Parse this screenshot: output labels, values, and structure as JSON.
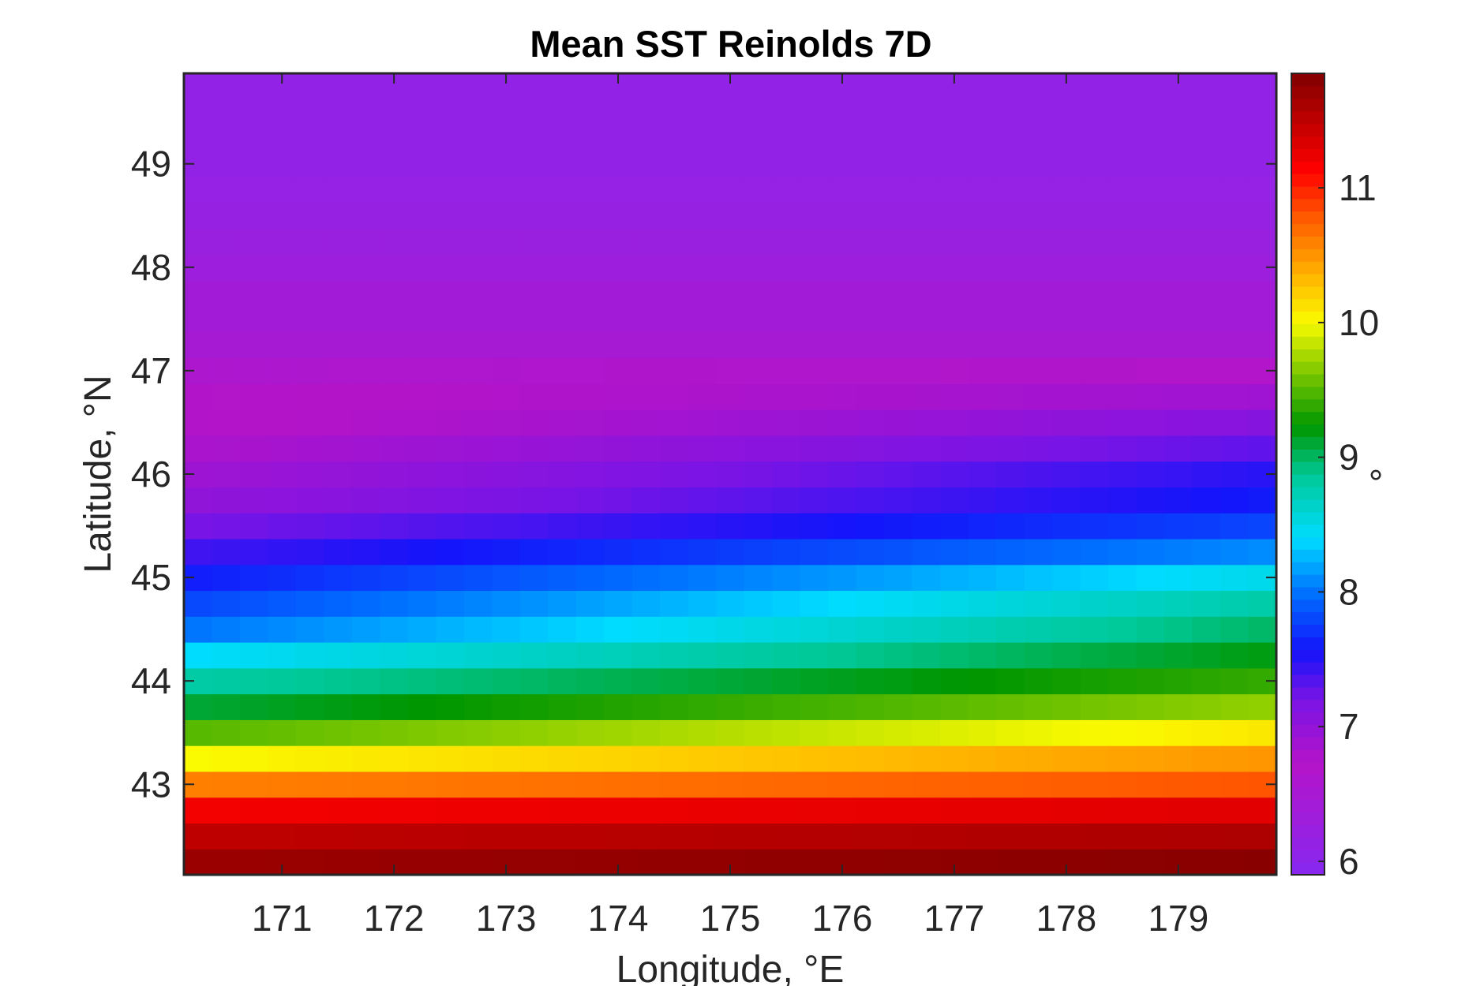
{
  "chart_data": {
    "type": "heatmap",
    "title": "Mean SST Reinolds 7D",
    "xlabel": "Longitude, °E",
    "ylabel": "Latitude, °N",
    "colorbar_label": "°",
    "colormap": "jet-like (violet → blue → cyan → green → yellow → red → dark red)",
    "xlim": [
      170.125,
      179.875
    ],
    "ylim": [
      42.125,
      49.875
    ],
    "clim": [
      5.9,
      11.85
    ],
    "xticks": [
      171,
      172,
      173,
      174,
      175,
      176,
      177,
      178,
      179
    ],
    "yticks": [
      43,
      44,
      45,
      46,
      47,
      48,
      49
    ],
    "colorbar_ticks": [
      6,
      7,
      8,
      9,
      10,
      11
    ],
    "grid": false,
    "cell_size_deg": 0.25,
    "lat_profile": {
      "lat": [
        42.25,
        42.5,
        42.75,
        43.0,
        43.25,
        43.5,
        43.75,
        44.0,
        44.25,
        44.5,
        44.75,
        45.0,
        45.25,
        45.5,
        45.75,
        46.0,
        46.25,
        46.5,
        46.75,
        47.0,
        47.25,
        47.5,
        47.75,
        48.0,
        48.5,
        49.0,
        49.5,
        49.75
      ],
      "value_west": [
        11.7,
        11.5,
        11.2,
        10.6,
        10.0,
        9.5,
        9.1,
        8.8,
        8.4,
        8.0,
        7.8,
        7.6,
        7.4,
        7.2,
        7.0,
        6.9,
        6.8,
        6.7,
        6.7,
        6.6,
        6.5,
        6.4,
        6.4,
        6.3,
        6.2,
        6.1,
        6.1,
        6.1
      ],
      "value_east": [
        11.8,
        11.6,
        11.3,
        10.8,
        10.5,
        10.1,
        9.7,
        9.4,
        9.2,
        9.0,
        8.8,
        8.5,
        8.1,
        7.8,
        7.6,
        7.5,
        7.3,
        7.1,
        6.9,
        6.7,
        6.5,
        6.4,
        6.4,
        6.3,
        6.2,
        6.1,
        6.1,
        6.1
      ]
    }
  }
}
